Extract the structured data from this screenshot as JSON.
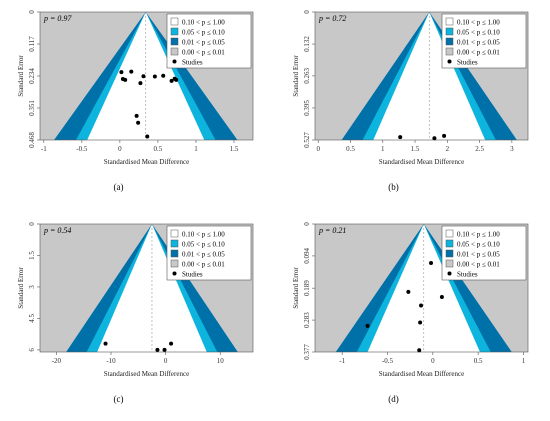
{
  "colors": {
    "background": "#c8c8c8",
    "funnel_inner": "#ffffff",
    "band_005_010": "#0db4dd",
    "band_001_005": "#0070a8",
    "band_000_001": "#c8c8c8",
    "points": "#000000"
  },
  "legend": {
    "band_010_100": "0.10 < p ≤ 1.00",
    "band_005_010": "0.05 < p ≤ 0.10",
    "band_001_005": "0.01 < p ≤ 0.05",
    "band_000_001": "0.00 < p ≤ 0.01",
    "studies": "Studies"
  },
  "chart_data": [
    {
      "type": "scatter",
      "panel_label": "(a)",
      "p_text": "p = 0.97",
      "xlabel": "Standardised Mean Difference",
      "ylabel": "Standard Error",
      "xlim": [
        -1.05,
        1.75
      ],
      "ylim": [
        0,
        0.468
      ],
      "y_reversed": true,
      "xticks": [
        -1,
        -0.5,
        0,
        0.5,
        1,
        1.5
      ],
      "xtick_labels": [
        "-1",
        "-0.5",
        "0",
        "0.5",
        "1",
        "1.5"
      ],
      "yticks": [
        0,
        0.117,
        0.234,
        0.351,
        0.468
      ],
      "ytick_labels": [
        "0",
        "0.117",
        "0.234",
        "0.351",
        "0.468"
      ],
      "center": 0.34,
      "legend_position": "top-right",
      "points": [
        {
          "x": 0.02,
          "y": 0.22
        },
        {
          "x": 0.04,
          "y": 0.245
        },
        {
          "x": 0.07,
          "y": 0.248
        },
        {
          "x": 0.15,
          "y": 0.218
        },
        {
          "x": 0.27,
          "y": 0.26
        },
        {
          "x": 0.31,
          "y": 0.235
        },
        {
          "x": 0.46,
          "y": 0.236
        },
        {
          "x": 0.57,
          "y": 0.233
        },
        {
          "x": 0.68,
          "y": 0.252
        },
        {
          "x": 0.72,
          "y": 0.244
        },
        {
          "x": 0.74,
          "y": 0.248
        },
        {
          "x": 0.22,
          "y": 0.38
        },
        {
          "x": 0.24,
          "y": 0.405
        },
        {
          "x": 0.36,
          "y": 0.455
        }
      ]
    },
    {
      "type": "scatter",
      "panel_label": "(b)",
      "p_text": "p = 0.72",
      "xlabel": "Standardised Mean Difference",
      "ylabel": "Standard Error",
      "xlim": [
        -0.05,
        3.25
      ],
      "ylim": [
        0,
        0.527
      ],
      "y_reversed": true,
      "xticks": [
        0,
        0.5,
        1,
        1.5,
        2,
        2.5,
        3
      ],
      "xtick_labels": [
        "0",
        "0.5",
        "1",
        "1.5",
        "2",
        "2.5",
        "3"
      ],
      "yticks": [
        0,
        0.132,
        0.263,
        0.395,
        0.527
      ],
      "ytick_labels": [
        "0",
        "0.132",
        "0.263",
        "0.395",
        "0.527"
      ],
      "center": 1.72,
      "legend_position": "top-right",
      "points": [
        {
          "x": 1.27,
          "y": 0.515
        },
        {
          "x": 1.8,
          "y": 0.52
        },
        {
          "x": 1.95,
          "y": 0.51
        }
      ]
    },
    {
      "type": "scatter",
      "panel_label": "(c)",
      "p_text": "p = 0.54",
      "xlabel": "Standardised Mean Difference",
      "ylabel": "Standard Error",
      "xlim": [
        -23,
        16
      ],
      "ylim": [
        0,
        6.1
      ],
      "y_reversed": true,
      "xticks": [
        -20,
        -10,
        0,
        10
      ],
      "xtick_labels": [
        "-20",
        "-10",
        "0",
        "10"
      ],
      "yticks": [
        0,
        1.5,
        3,
        4.5,
        6
      ],
      "ytick_labels": [
        "0",
        "1.5",
        "3",
        "4.5",
        "6"
      ],
      "center": -2.5,
      "legend_position": "top-right",
      "points": [
        {
          "x": -11,
          "y": 5.7
        },
        {
          "x": -1.5,
          "y": 6.0
        },
        {
          "x": -0.2,
          "y": 6.0
        },
        {
          "x": 1.0,
          "y": 5.7
        }
      ]
    },
    {
      "type": "scatter",
      "panel_label": "(d)",
      "p_text": "p = 0.21",
      "xlabel": "Standardised Mean Difference",
      "ylabel": "Standard Error",
      "xlim": [
        -1.3,
        1.05
      ],
      "ylim": [
        0,
        0.377
      ],
      "y_reversed": true,
      "xticks": [
        -1,
        -0.5,
        0,
        0.5,
        1
      ],
      "xtick_labels": [
        "-1",
        "-0.5",
        "0",
        "0.5",
        "1"
      ],
      "yticks": [
        0,
        0.094,
        0.189,
        0.283,
        0.377
      ],
      "ytick_labels": [
        "0",
        "0.094",
        "0.189",
        "0.283",
        "0.377"
      ],
      "center": -0.1,
      "legend_position": "top-right",
      "points": [
        {
          "x": -0.02,
          "y": 0.115
        },
        {
          "x": -0.27,
          "y": 0.2
        },
        {
          "x": -0.13,
          "y": 0.24
        },
        {
          "x": 0.1,
          "y": 0.215
        },
        {
          "x": -0.14,
          "y": 0.29
        },
        {
          "x": -0.72,
          "y": 0.3
        },
        {
          "x": -0.15,
          "y": 0.372
        }
      ]
    }
  ]
}
